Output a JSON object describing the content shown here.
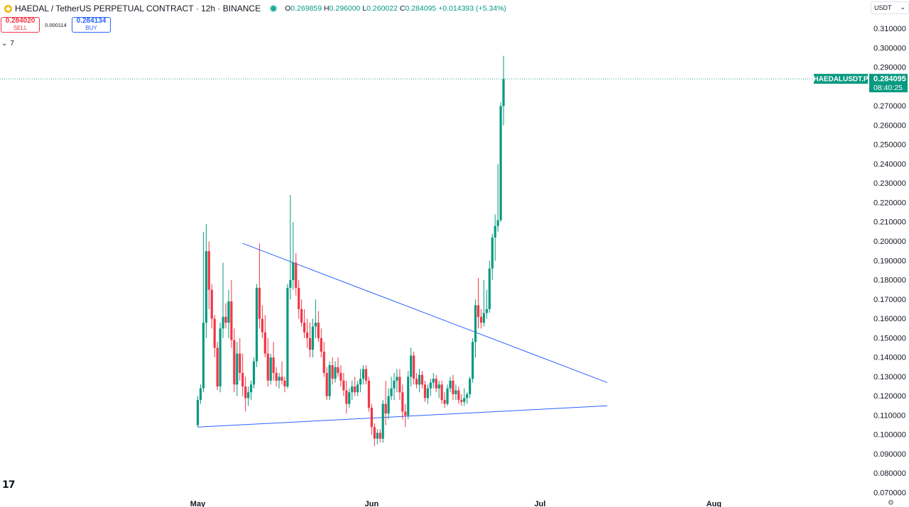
{
  "header": {
    "title": "HAEDAL / TetherUS PERPETUAL CONTRACT · 12h · BINANCE",
    "open_label": "O",
    "open": "0.269859",
    "high_label": "H",
    "high": "0.296000",
    "low_label": "L",
    "low": "0.260022",
    "close_label": "C",
    "close": "0.284095",
    "change": "+0.014393 (+5.34%)"
  },
  "trade": {
    "sell_price": "0.284020",
    "sell_label": "SELL",
    "spread": "0.000114",
    "buy_price": "0.284134",
    "buy_label": "BUY"
  },
  "indicators": {
    "toggle_count": "7"
  },
  "currency": {
    "selected": "USDT"
  },
  "price_tag": {
    "symbol": "HAEDALUSDT.P",
    "price": "0.284095",
    "countdown": "08:40:25"
  },
  "colors": {
    "up": "#089981",
    "down": "#f23645",
    "trendline": "#2962ff",
    "axis_text": "#131722"
  },
  "chart_data": {
    "type": "candlestick",
    "interval": "12h",
    "x_tick_labels": [
      "May",
      "Jun",
      "Jul",
      "Aug"
    ],
    "y_tick_labels": [
      "0.070000",
      "0.080000",
      "0.090000",
      "0.100000",
      "0.110000",
      "0.120000",
      "0.130000",
      "0.140000",
      "0.150000",
      "0.160000",
      "0.170000",
      "0.180000",
      "0.190000",
      "0.200000",
      "0.210000",
      "0.220000",
      "0.230000",
      "0.240000",
      "0.250000",
      "0.260000",
      "0.270000",
      "0.280000",
      "0.290000",
      "0.300000",
      "0.310000"
    ],
    "ylim": [
      0.065,
      0.313
    ],
    "grid": false,
    "first_candle": "2025-05-01",
    "candles": [
      [
        0.105,
        0.12,
        0.104,
        0.118
      ],
      [
        0.118,
        0.126,
        0.116,
        0.124
      ],
      [
        0.124,
        0.205,
        0.122,
        0.158
      ],
      [
        0.158,
        0.209,
        0.15,
        0.195
      ],
      [
        0.195,
        0.2,
        0.165,
        0.175
      ],
      [
        0.175,
        0.178,
        0.155,
        0.16
      ],
      [
        0.16,
        0.162,
        0.14,
        0.145
      ],
      [
        0.145,
        0.148,
        0.123,
        0.125
      ],
      [
        0.125,
        0.158,
        0.122,
        0.155
      ],
      [
        0.155,
        0.189,
        0.15,
        0.161
      ],
      [
        0.161,
        0.168,
        0.155,
        0.158
      ],
      [
        0.158,
        0.175,
        0.15,
        0.169
      ],
      [
        0.169,
        0.18,
        0.145,
        0.149
      ],
      [
        0.149,
        0.155,
        0.122,
        0.126
      ],
      [
        0.126,
        0.148,
        0.12,
        0.142
      ],
      [
        0.142,
        0.15,
        0.128,
        0.132
      ],
      [
        0.132,
        0.142,
        0.12,
        0.125
      ],
      [
        0.125,
        0.13,
        0.112,
        0.119
      ],
      [
        0.119,
        0.125,
        0.115,
        0.122
      ],
      [
        0.122,
        0.128,
        0.118,
        0.126
      ],
      [
        0.126,
        0.14,
        0.124,
        0.138
      ],
      [
        0.138,
        0.178,
        0.135,
        0.176
      ],
      [
        0.176,
        0.199,
        0.155,
        0.16
      ],
      [
        0.16,
        0.167,
        0.15,
        0.153
      ],
      [
        0.153,
        0.162,
        0.14,
        0.142
      ],
      [
        0.142,
        0.15,
        0.125,
        0.128
      ],
      [
        0.128,
        0.142,
        0.126,
        0.14
      ],
      [
        0.14,
        0.148,
        0.128,
        0.132
      ],
      [
        0.132,
        0.135,
        0.125,
        0.128
      ],
      [
        0.128,
        0.132,
        0.124,
        0.13
      ],
      [
        0.13,
        0.138,
        0.126,
        0.128
      ],
      [
        0.128,
        0.13,
        0.122,
        0.125
      ],
      [
        0.125,
        0.178,
        0.124,
        0.176
      ],
      [
        0.176,
        0.224,
        0.17,
        0.18
      ],
      [
        0.18,
        0.21,
        0.175,
        0.189
      ],
      [
        0.189,
        0.194,
        0.172,
        0.176
      ],
      [
        0.176,
        0.18,
        0.16,
        0.165
      ],
      [
        0.165,
        0.17,
        0.156,
        0.158
      ],
      [
        0.158,
        0.165,
        0.15,
        0.153
      ],
      [
        0.153,
        0.16,
        0.145,
        0.15
      ],
      [
        0.15,
        0.158,
        0.14,
        0.144
      ],
      [
        0.144,
        0.16,
        0.14,
        0.156
      ],
      [
        0.156,
        0.17,
        0.15,
        0.158
      ],
      [
        0.158,
        0.164,
        0.148,
        0.15
      ],
      [
        0.15,
        0.155,
        0.14,
        0.143
      ],
      [
        0.143,
        0.148,
        0.13,
        0.132
      ],
      [
        0.132,
        0.135,
        0.118,
        0.12
      ],
      [
        0.12,
        0.138,
        0.118,
        0.136
      ],
      [
        0.136,
        0.14,
        0.126,
        0.129
      ],
      [
        0.129,
        0.138,
        0.127,
        0.135
      ],
      [
        0.135,
        0.14,
        0.13,
        0.132
      ],
      [
        0.132,
        0.136,
        0.125,
        0.128
      ],
      [
        0.128,
        0.132,
        0.12,
        0.123
      ],
      [
        0.123,
        0.128,
        0.111,
        0.116
      ],
      [
        0.116,
        0.124,
        0.114,
        0.122
      ],
      [
        0.122,
        0.128,
        0.118,
        0.125
      ],
      [
        0.125,
        0.13,
        0.12,
        0.122
      ],
      [
        0.122,
        0.128,
        0.12,
        0.126
      ],
      [
        0.126,
        0.134,
        0.122,
        0.129
      ],
      [
        0.129,
        0.136,
        0.126,
        0.134
      ],
      [
        0.134,
        0.136,
        0.126,
        0.128
      ],
      [
        0.128,
        0.13,
        0.112,
        0.114
      ],
      [
        0.114,
        0.116,
        0.1,
        0.104
      ],
      [
        0.104,
        0.106,
        0.094,
        0.098
      ],
      [
        0.098,
        0.103,
        0.095,
        0.101
      ],
      [
        0.101,
        0.103,
        0.096,
        0.098
      ],
      [
        0.098,
        0.118,
        0.096,
        0.116
      ],
      [
        0.116,
        0.128,
        0.105,
        0.111
      ],
      [
        0.111,
        0.124,
        0.108,
        0.12
      ],
      [
        0.12,
        0.13,
        0.118,
        0.124
      ],
      [
        0.124,
        0.132,
        0.118,
        0.128
      ],
      [
        0.128,
        0.134,
        0.122,
        0.13
      ],
      [
        0.13,
        0.134,
        0.118,
        0.122
      ],
      [
        0.122,
        0.126,
        0.108,
        0.112
      ],
      [
        0.112,
        0.116,
        0.104,
        0.11
      ],
      [
        0.11,
        0.133,
        0.108,
        0.13
      ],
      [
        0.13,
        0.145,
        0.125,
        0.141
      ],
      [
        0.141,
        0.143,
        0.126,
        0.129
      ],
      [
        0.129,
        0.132,
        0.124,
        0.126
      ],
      [
        0.126,
        0.134,
        0.122,
        0.131
      ],
      [
        0.131,
        0.133,
        0.124,
        0.126
      ],
      [
        0.126,
        0.128,
        0.117,
        0.119
      ],
      [
        0.119,
        0.126,
        0.116,
        0.124
      ],
      [
        0.124,
        0.129,
        0.12,
        0.127
      ],
      [
        0.127,
        0.132,
        0.124,
        0.129
      ],
      [
        0.129,
        0.131,
        0.122,
        0.124
      ],
      [
        0.124,
        0.128,
        0.119,
        0.126
      ],
      [
        0.126,
        0.128,
        0.116,
        0.118
      ],
      [
        0.118,
        0.122,
        0.114,
        0.116
      ],
      [
        0.116,
        0.126,
        0.115,
        0.124
      ],
      [
        0.124,
        0.13,
        0.122,
        0.128
      ],
      [
        0.128,
        0.131,
        0.118,
        0.121
      ],
      [
        0.121,
        0.126,
        0.118,
        0.123
      ],
      [
        0.123,
        0.125,
        0.116,
        0.118
      ],
      [
        0.118,
        0.121,
        0.115,
        0.117
      ],
      [
        0.117,
        0.124,
        0.115,
        0.119
      ],
      [
        0.119,
        0.122,
        0.116,
        0.121
      ],
      [
        0.121,
        0.13,
        0.119,
        0.129
      ],
      [
        0.129,
        0.15,
        0.127,
        0.148
      ],
      [
        0.148,
        0.17,
        0.14,
        0.167
      ],
      [
        0.167,
        0.181,
        0.155,
        0.161
      ],
      [
        0.161,
        0.165,
        0.155,
        0.158
      ],
      [
        0.158,
        0.18,
        0.156,
        0.163
      ],
      [
        0.163,
        0.175,
        0.16,
        0.165
      ],
      [
        0.165,
        0.19,
        0.163,
        0.186
      ],
      [
        0.186,
        0.204,
        0.18,
        0.202
      ],
      [
        0.202,
        0.214,
        0.19,
        0.208
      ],
      [
        0.208,
        0.24,
        0.205,
        0.211
      ],
      [
        0.211,
        0.272,
        0.21,
        0.27
      ],
      [
        0.27,
        0.296,
        0.26,
        0.284
      ]
    ],
    "trendlines": [
      {
        "from": [
          "2025-05-09",
          0.199
        ],
        "to": [
          "2025-07-13",
          0.127
        ]
      },
      {
        "from": [
          "2025-05-01",
          0.104
        ],
        "to": [
          "2025-07-13",
          0.115
        ]
      }
    ],
    "last_price": 0.284095
  }
}
